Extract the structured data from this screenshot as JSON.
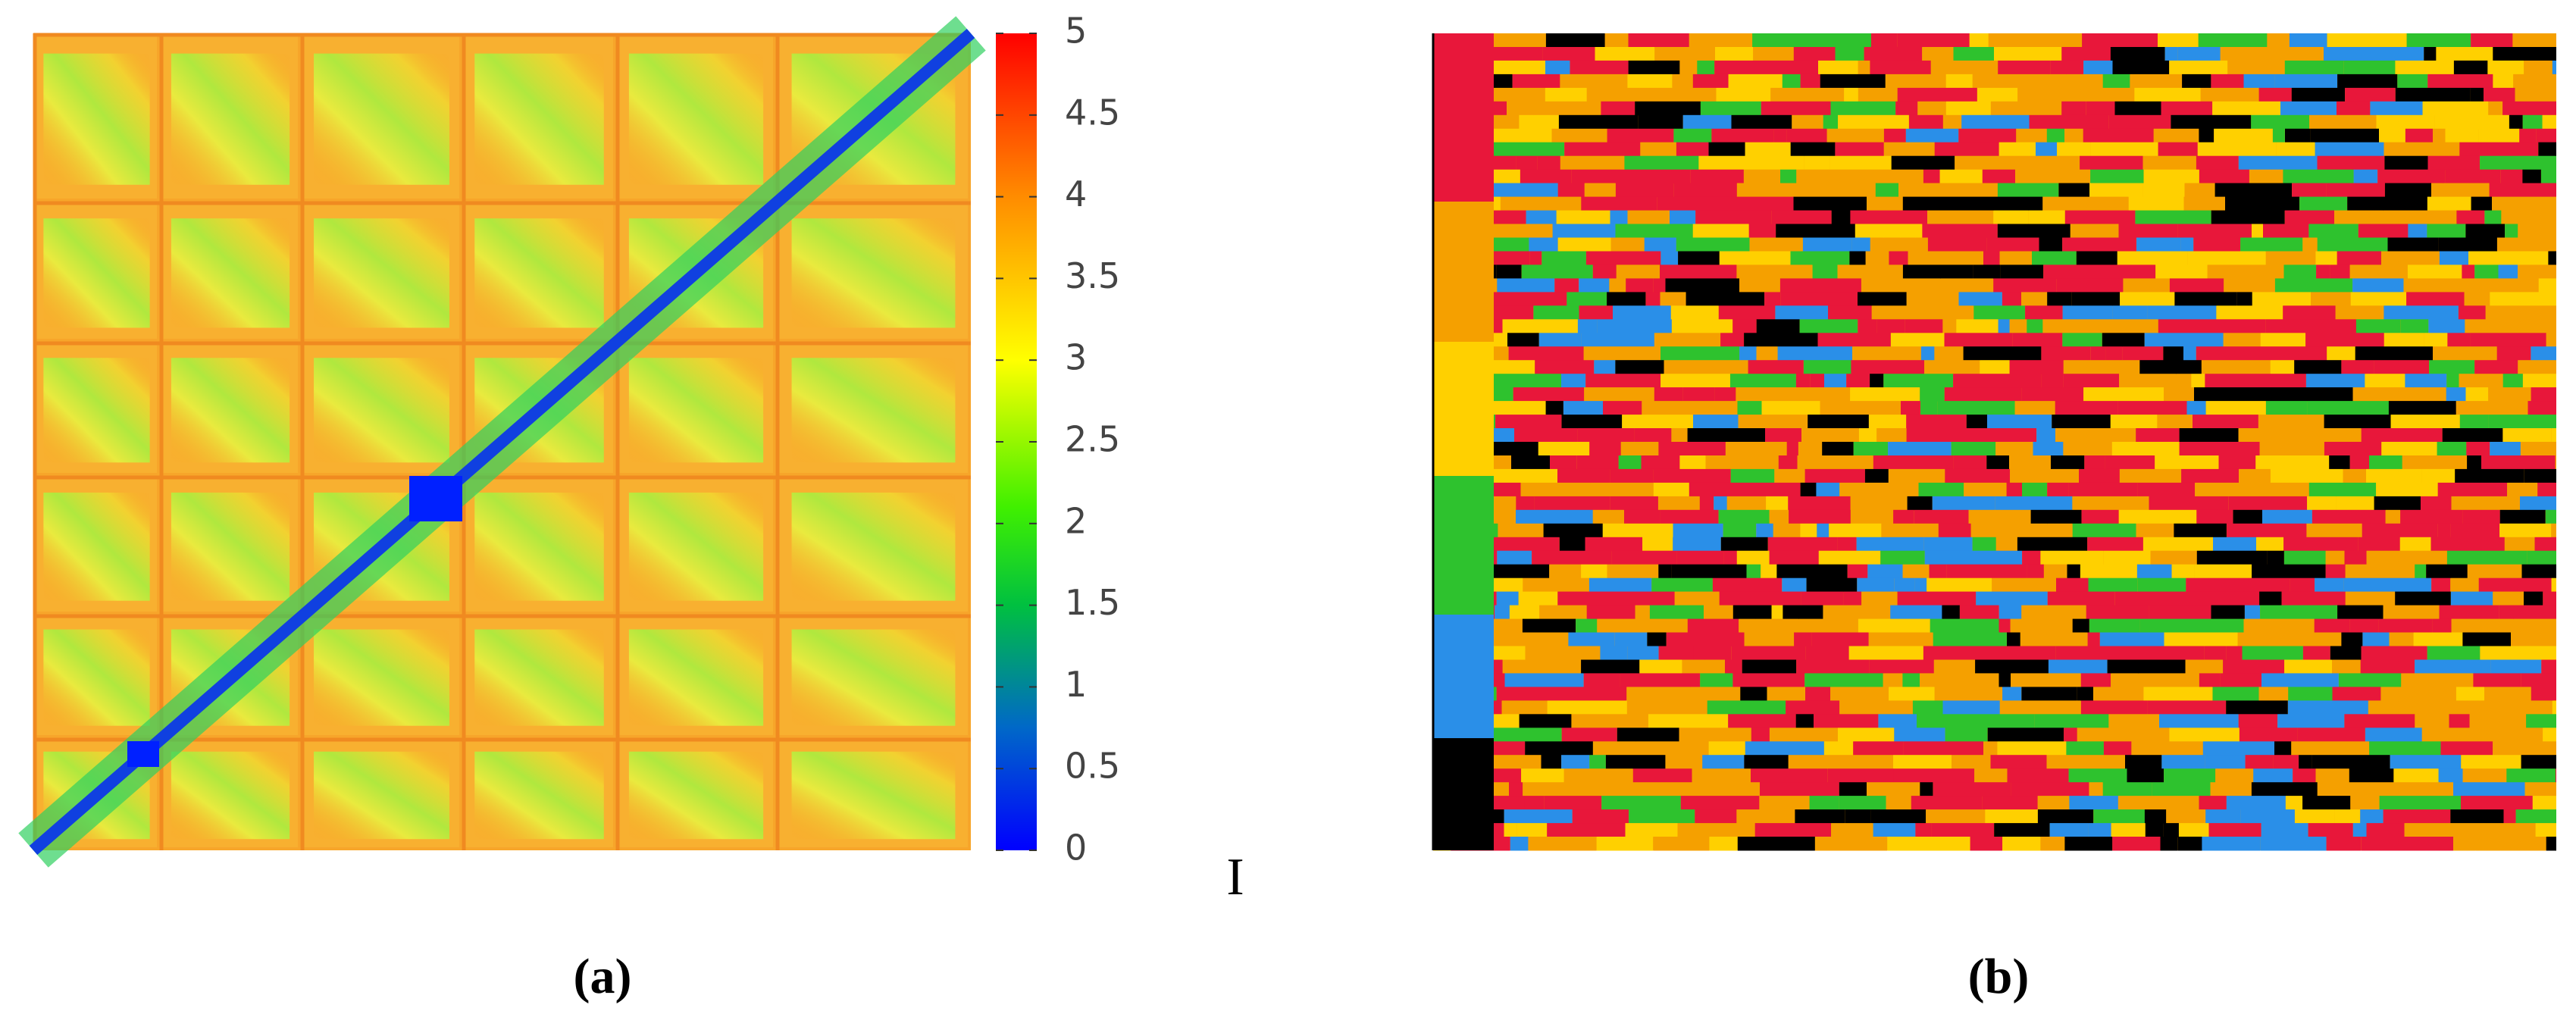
{
  "figure": {
    "panel_a": {
      "caption": "(a)",
      "colorbar": {
        "clim": [
          0,
          5
        ],
        "ticks": [
          0,
          0.5,
          1,
          1.5,
          2,
          2.5,
          3,
          3.5,
          4,
          4.5,
          5
        ]
      },
      "side_label": "I"
    },
    "panel_b": {
      "caption": "(b)"
    }
  }
}
